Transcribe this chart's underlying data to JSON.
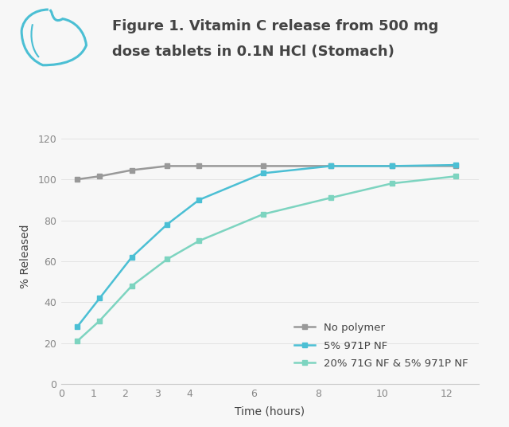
{
  "title_line1": "Figure 1. Vitamin C release from 500 mg",
  "title_line2": "dose tablets in 0.1N HCl (Stomach)",
  "xlabel": "Time (hours)",
  "ylabel": "% Released",
  "background_color": "#f7f7f7",
  "plot_bg_color": "#f7f7f7",
  "series": [
    {
      "label": "No polymer",
      "color": "#999999",
      "marker": "s",
      "x": [
        0.5,
        1.2,
        2.2,
        3.3,
        4.3,
        6.3,
        8.4,
        10.3,
        12.3
      ],
      "y": [
        100,
        101.5,
        104.5,
        106.5,
        106.5,
        106.5,
        106.5,
        106.5,
        106.5
      ]
    },
    {
      "label": "5% 971P NF",
      "color": "#4bbfd4",
      "marker": "s",
      "x": [
        0.5,
        1.2,
        2.2,
        3.3,
        4.3,
        6.3,
        8.4,
        10.3,
        12.3
      ],
      "y": [
        28,
        42,
        62,
        78,
        90,
        103,
        106.5,
        106.5,
        107
      ]
    },
    {
      "label": "20% 71G NF & 5% 971P NF",
      "color": "#7dd4c0",
      "marker": "s",
      "x": [
        0.5,
        1.2,
        2.2,
        3.3,
        4.3,
        6.3,
        8.4,
        10.3,
        12.3
      ],
      "y": [
        21,
        31,
        48,
        61,
        70,
        83,
        91,
        98,
        101.5
      ]
    }
  ],
  "xlim": [
    0,
    13
  ],
  "ylim": [
    0,
    125
  ],
  "xticks": [
    0,
    1,
    2,
    3,
    4,
    6,
    8,
    10,
    12
  ],
  "yticks": [
    0,
    20,
    40,
    60,
    80,
    100,
    120
  ],
  "title_fontsize": 13,
  "axis_label_fontsize": 10,
  "tick_fontsize": 9,
  "legend_fontsize": 9.5,
  "line_width": 1.8,
  "marker_size": 5,
  "stomach_color": "#4bbfd4",
  "text_color": "#444444",
  "tick_color": "#888888",
  "spine_color": "#cccccc",
  "grid_color": "#e0e0e0"
}
